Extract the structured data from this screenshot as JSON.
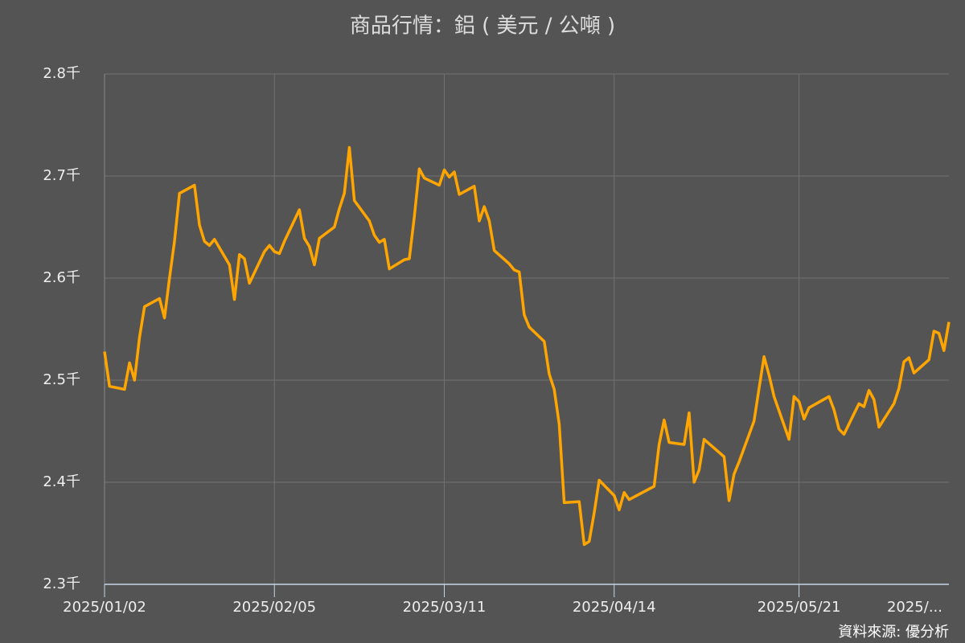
{
  "chart_data": {
    "type": "line",
    "title": "商品行情：鋁 ( 美元 / 公噸 )",
    "source": "資料來源: 優分析",
    "color": "#ffa500",
    "grid": true,
    "x": [
      "2025/01/02",
      "2025/01/03",
      "2025/01/06",
      "2025/01/07",
      "2025/01/08",
      "2025/01/09",
      "2025/01/10",
      "2025/01/13",
      "2025/01/14",
      "2025/01/15",
      "2025/01/16",
      "2025/01/17",
      "2025/01/20",
      "2025/01/21",
      "2025/01/22",
      "2025/01/23",
      "2025/01/24",
      "2025/01/27",
      "2025/01/28",
      "2025/01/29",
      "2025/01/30",
      "2025/01/31",
      "2025/02/03",
      "2025/02/04",
      "2025/02/05",
      "2025/02/06",
      "2025/02/07",
      "2025/02/10",
      "2025/02/11",
      "2025/02/12",
      "2025/02/13",
      "2025/02/14",
      "2025/02/17",
      "2025/02/18",
      "2025/02/19",
      "2025/02/20",
      "2025/02/21",
      "2025/02/24",
      "2025/02/25",
      "2025/02/26",
      "2025/02/27",
      "2025/02/28",
      "2025/03/03",
      "2025/03/04",
      "2025/03/05",
      "2025/03/06",
      "2025/03/07",
      "2025/03/10",
      "2025/03/11",
      "2025/03/12",
      "2025/03/13",
      "2025/03/14",
      "2025/03/17",
      "2025/03/18",
      "2025/03/19",
      "2025/03/20",
      "2025/03/21",
      "2025/03/24",
      "2025/03/25",
      "2025/03/26",
      "2025/03/27",
      "2025/03/28",
      "2025/03/31",
      "2025/04/01",
      "2025/04/02",
      "2025/04/03",
      "2025/04/04",
      "2025/04/07",
      "2025/04/08",
      "2025/04/09",
      "2025/04/10",
      "2025/04/11",
      "2025/04/14",
      "2025/04/15",
      "2025/04/16",
      "2025/04/17",
      "2025/04/22",
      "2025/04/23",
      "2025/04/24",
      "2025/04/25",
      "2025/04/28",
      "2025/04/29",
      "2025/04/30",
      "2025/05/01",
      "2025/05/02",
      "2025/05/06",
      "2025/05/07",
      "2025/05/08",
      "2025/05/09",
      "2025/05/12",
      "2025/05/13",
      "2025/05/14",
      "2025/05/15",
      "2025/05/16",
      "2025/05/19",
      "2025/05/20",
      "2025/05/21",
      "2025/05/22",
      "2025/05/23",
      "2025/05/27",
      "2025/05/28",
      "2025/05/29",
      "2025/05/30",
      "2025/06/02",
      "2025/06/03",
      "2025/06/04",
      "2025/06/05",
      "2025/06/06",
      "2025/06/09",
      "2025/06/10",
      "2025/06/11",
      "2025/06/12",
      "2025/06/13",
      "2025/06/16",
      "2025/06/17",
      "2025/06/18",
      "2025/06/19",
      "2025/06/20"
    ],
    "values": [
      2528,
      2494,
      2491,
      2517,
      2500,
      2542,
      2572,
      2580,
      2561,
      2600,
      2636,
      2683,
      2691,
      2652,
      2636,
      2632,
      2638,
      2613,
      2579,
      2623,
      2619,
      2595,
      2626,
      2632,
      2626,
      2624,
      2636,
      2667,
      2639,
      2631,
      2613,
      2639,
      2650,
      2668,
      2683,
      2728,
      2676,
      2656,
      2642,
      2635,
      2638,
      2609,
      2618,
      2619,
      2660,
      2707,
      2698,
      2691,
      2706,
      2699,
      2704,
      2682,
      2690,
      2656,
      2670,
      2656,
      2627,
      2614,
      2608,
      2606,
      2564,
      2552,
      2538,
      2506,
      2491,
      2457,
      2380,
      2381,
      2339,
      2342,
      2370,
      2402,
      2387,
      2373,
      2390,
      2383,
      2396,
      2437,
      2461,
      2439,
      2437,
      2468,
      2400,
      2412,
      2442,
      2425,
      2382,
      2408,
      2420,
      2460,
      2492,
      2523,
      2505,
      2484,
      2442,
      2484,
      2479,
      2462,
      2473,
      2484,
      2471,
      2452,
      2447,
      2477,
      2474,
      2490,
      2481,
      2454,
      2477,
      2492,
      2518,
      2522,
      2507,
      2520,
      2548,
      2546,
      2529,
      2557
    ],
    "xlim": [
      "2025/01/02",
      "2025/06/20"
    ],
    "xticks": [
      "2025/01/02",
      "2025/02/05",
      "2025/03/11",
      "2025/04/14",
      "2025/05/21",
      {
        "value": "2025/06/24",
        "label": "2025/..."
      }
    ],
    "ylim": [
      2300,
      2800
    ],
    "yticks": [
      {
        "value": 2300,
        "label": "2.3千"
      },
      {
        "value": 2400,
        "label": "2.4千"
      },
      {
        "value": 2500,
        "label": "2.5千"
      },
      {
        "value": 2600,
        "label": "2.6千"
      },
      {
        "value": 2700,
        "label": "2.7千"
      },
      {
        "value": 2800,
        "label": "2.8千"
      }
    ]
  }
}
